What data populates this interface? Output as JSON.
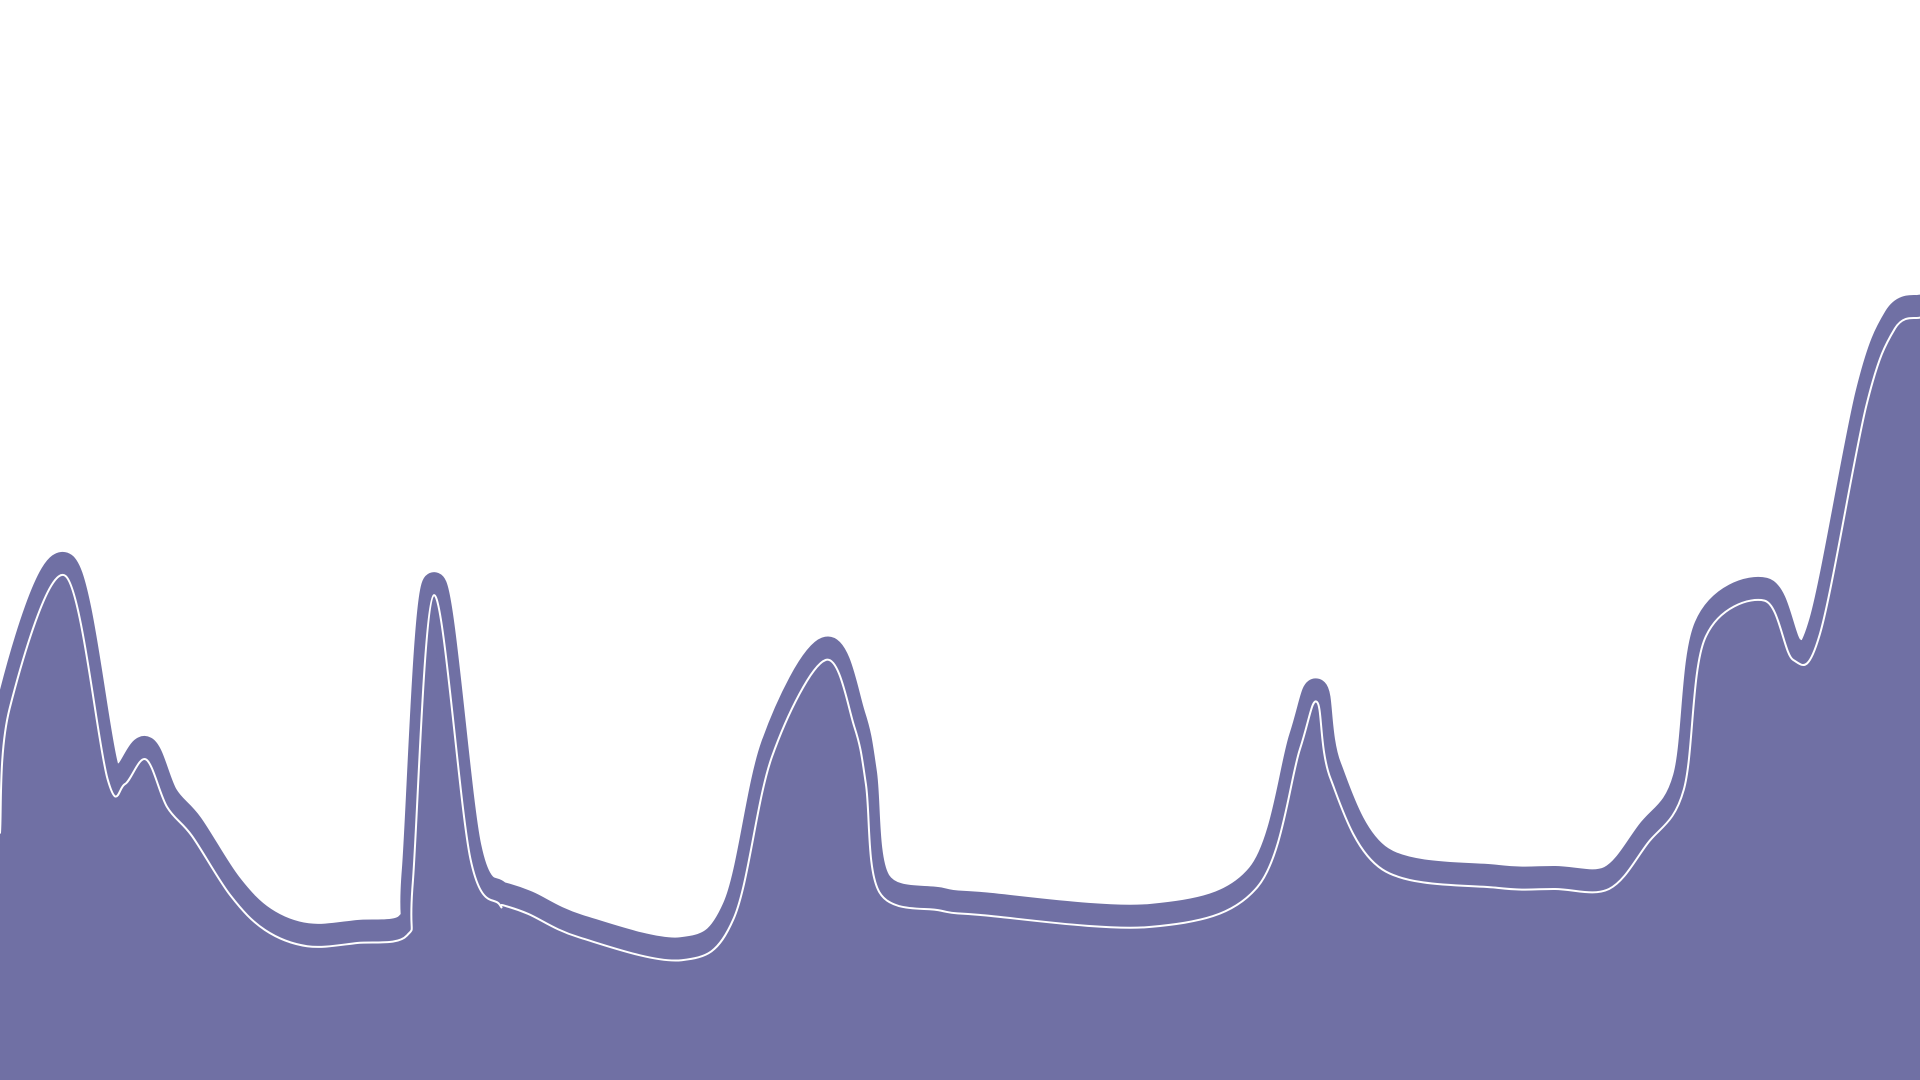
{
  "chart_data": {
    "type": "area",
    "title": "",
    "xlabel": "",
    "ylabel": "",
    "grid": false,
    "legend": "none",
    "ylim": [
      0,
      1
    ],
    "x": [
      0,
      0.005,
      0.034,
      0.056,
      0.065,
      0.076,
      0.087,
      0.1,
      0.12,
      0.138,
      0.16,
      0.186,
      0.212,
      0.215,
      0.226,
      0.245,
      0.26,
      0.262,
      0.275,
      0.302,
      0.355,
      0.382,
      0.402,
      0.43,
      0.445,
      0.451,
      0.458,
      0.49,
      0.51,
      0.6,
      0.655,
      0.677,
      0.686,
      0.693,
      0.72,
      0.78,
      0.81,
      0.838,
      0.858,
      0.877,
      0.888,
      0.919,
      0.934,
      0.948,
      0.972,
      0.987,
      1.0
    ],
    "series": [
      {
        "values": [
          0.24,
          0.355,
          0.478,
          0.29,
          0.285,
          0.308,
          0.264,
          0.237,
          0.182,
          0.15,
          0.135,
          0.138,
          0.145,
          0.194,
          0.46,
          0.216,
          0.174,
          0.173,
          0.165,
          0.143,
          0.122,
          0.16,
          0.31,
          0.4,
          0.338,
          0.285,
          0.185,
          0.168,
          0.164,
          0.153,
          0.19,
          0.317,
          0.361,
          0.29,
          0.206,
          0.189,
          0.188,
          0.188,
          0.23,
          0.28,
          0.42,
          0.455,
          0.4,
          0.425,
          0.635,
          0.707,
          0.717
        ],
        "color": "#7070a4"
      }
    ]
  }
}
